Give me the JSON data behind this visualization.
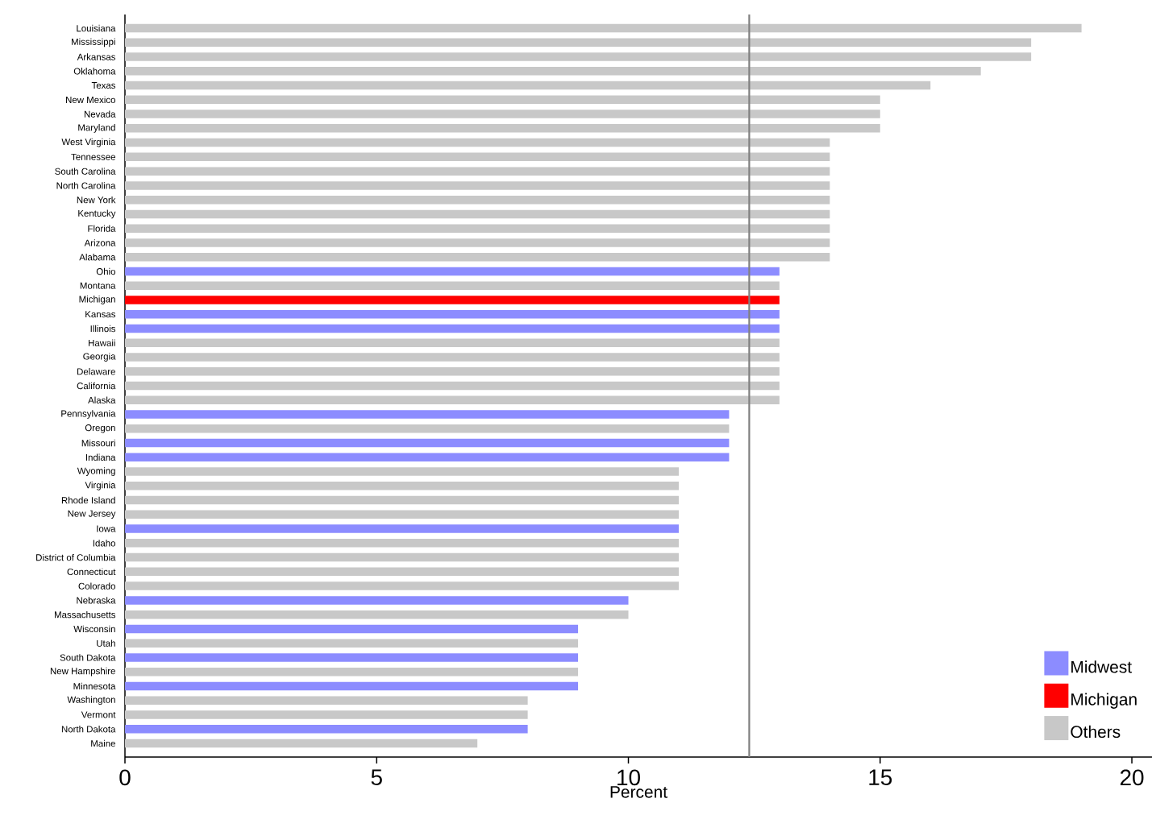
{
  "chart_data": {
    "type": "bar",
    "orientation": "horizontal",
    "xlabel": "Percent",
    "categories": [
      "Louisiana",
      "Mississippi",
      "Arkansas",
      "Oklahoma",
      "Texas",
      "New Mexico",
      "Nevada",
      "Maryland",
      "West Virginia",
      "Tennessee",
      "South Carolina",
      "North Carolina",
      "New York",
      "Kentucky",
      "Florida",
      "Arizona",
      "Alabama",
      "Ohio",
      "Montana",
      "Michigan",
      "Kansas",
      "Illinois",
      "Hawaii",
      "Georgia",
      "Delaware",
      "California",
      "Alaska",
      "Pennsylvania",
      "Oregon",
      "Missouri",
      "Indiana",
      "Wyoming",
      "Virginia",
      "Rhode Island",
      "New Jersey",
      "Iowa",
      "Idaho",
      "District of Columbia",
      "Connecticut",
      "Colorado",
      "Nebraska",
      "Massachusetts",
      "Wisconsin",
      "Utah",
      "South Dakota",
      "New Hampshire",
      "Minnesota",
      "Washington",
      "Vermont",
      "North Dakota",
      "Maine"
    ],
    "series": [
      {
        "name": "Midwest",
        "color": "#8c8cff",
        "values": [
          null,
          null,
          null,
          null,
          null,
          null,
          null,
          null,
          null,
          null,
          null,
          null,
          null,
          null,
          null,
          null,
          null,
          13,
          null,
          null,
          13,
          13,
          null,
          null,
          null,
          null,
          null,
          12,
          null,
          12,
          12,
          null,
          null,
          null,
          null,
          11,
          null,
          null,
          null,
          null,
          10,
          null,
          9,
          null,
          9,
          null,
          9,
          null,
          null,
          8,
          null
        ]
      },
      {
        "name": "Michigan",
        "color": "#ff0000",
        "values": [
          null,
          null,
          null,
          null,
          null,
          null,
          null,
          null,
          null,
          null,
          null,
          null,
          null,
          null,
          null,
          null,
          null,
          null,
          null,
          13,
          null,
          null,
          null,
          null,
          null,
          null,
          null,
          null,
          null,
          null,
          null,
          null,
          null,
          null,
          null,
          null,
          null,
          null,
          null,
          null,
          null,
          null,
          null,
          null,
          null,
          null,
          null,
          null,
          null,
          null,
          null
        ]
      },
      {
        "name": "Others",
        "color": "#c8c8c8",
        "values": [
          19,
          18,
          18,
          17,
          16,
          15,
          15,
          15,
          14,
          14,
          14,
          14,
          14,
          14,
          14,
          14,
          14,
          null,
          13,
          null,
          null,
          null,
          13,
          13,
          13,
          13,
          13,
          null,
          12,
          null,
          null,
          11,
          11,
          11,
          11,
          null,
          11,
          11,
          11,
          11,
          null,
          10,
          null,
          9,
          null,
          9,
          null,
          8,
          8,
          null,
          7
        ]
      }
    ],
    "xlim": [
      0,
      20.4
    ],
    "xticks": [
      0,
      5,
      10,
      15,
      20
    ],
    "ref_lines": [
      {
        "axis": "x",
        "value": 12.4,
        "color": "#808080"
      }
    ],
    "grid": false,
    "legend": "bottom right"
  }
}
